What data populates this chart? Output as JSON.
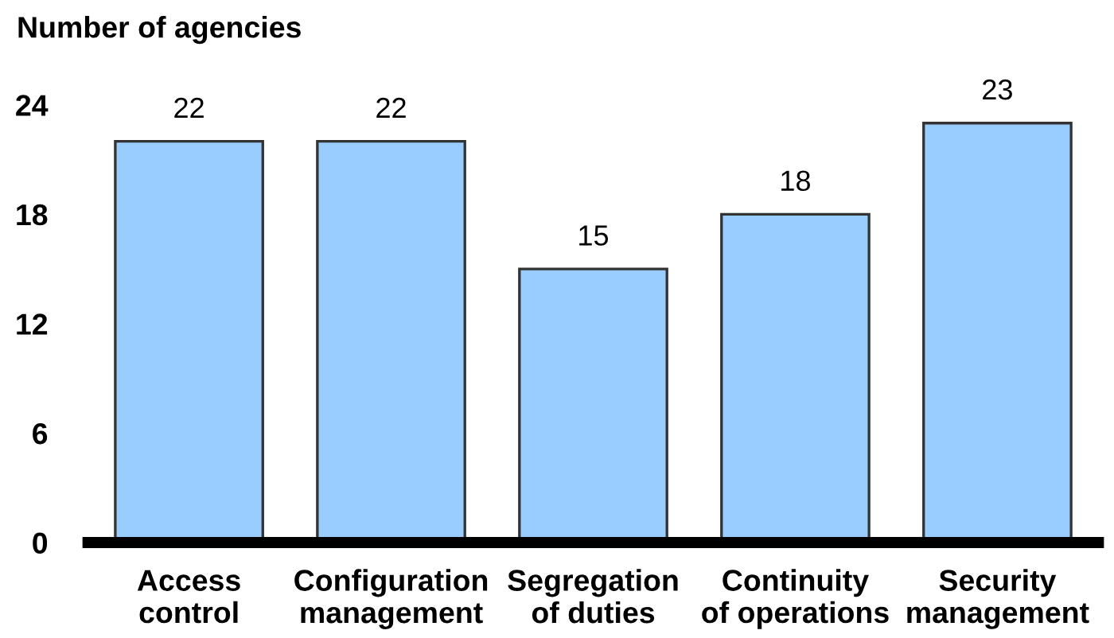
{
  "chart_data": {
    "type": "bar",
    "ylabel": "Number of agencies",
    "categories": [
      "Access\ncontrol",
      "Configuration\nmanagement",
      "Segregation\nof duties",
      "Continuity\nof operations",
      "Security\nmanagement"
    ],
    "values": [
      22,
      22,
      15,
      18,
      23
    ],
    "color": "#99ccff",
    "ylim": [
      0,
      24
    ],
    "yticks": [
      0,
      6,
      12,
      18,
      24
    ],
    "data_labels": true,
    "grid": false,
    "legend": false
  }
}
